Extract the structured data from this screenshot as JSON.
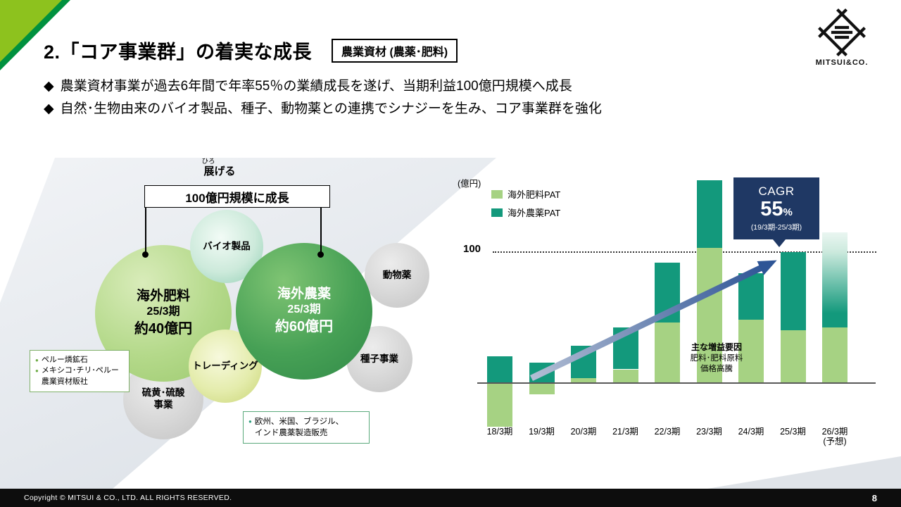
{
  "slide": {
    "title": "2.「コア事業群」の着実な成長",
    "tag": "農業資材 (農薬･肥料)",
    "bullet_marker": "◆",
    "bullets": [
      "農業資材事業が過去6年間で年率55％の業績成長を遂げ、当期利益100億円規模へ成長",
      "自然･生物由来のバイオ製品、種子、動物薬との連携でシナジーを生み、コア事業群を強化"
    ],
    "footer_copyright": "Copyright © MITSUI & CO., LTD. ALL RIGHTS RESERVED.",
    "page_number": "8",
    "logo_text": "MITSUI&CO."
  },
  "diagram": {
    "ruby": "ひろ",
    "expand_label": "展げる",
    "growth_box": "100億円規模に成長",
    "note_marker": "●",
    "bubbles": {
      "fertilizer": {
        "line1": "海外肥料",
        "line2": "25/3期",
        "line3": "約40億円"
      },
      "pesticide": {
        "line1": "海外農薬",
        "line2": "25/3期",
        "line3": "約60億円"
      },
      "bio": "バイオ製品",
      "animal": "動物薬",
      "seed": "種子事業",
      "trading": "トレーディング",
      "sulfur_line1": "硫黄･硫酸",
      "sulfur_line2": "事業"
    },
    "left_note": {
      "item1": "ペルー燐鉱石",
      "item2": "メキシコ･チリ･ペルー\n農業資材販社"
    },
    "bottom_note": "欧州、米国、ブラジル、\nインド農薬製造販売"
  },
  "chart_data": {
    "type": "bar",
    "stacked": true,
    "unit_label": "(億円)",
    "gridline": {
      "label": "100",
      "value": 100
    },
    "categories": [
      "18/3期",
      "19/3期",
      "20/3期",
      "21/3期",
      "22/3期",
      "23/3期",
      "24/3期",
      "25/3期",
      "26/3期\n(予想)"
    ],
    "series": [
      {
        "name": "海外肥料PAT",
        "color": "#a6d283",
        "values": [
          -33,
          -8,
          3,
          10,
          46,
          103,
          48,
          40,
          42
        ]
      },
      {
        "name": "海外農薬PAT",
        "color": "#13997c",
        "values": [
          20,
          15,
          25,
          32,
          46,
          52,
          36,
          60,
          73
        ]
      }
    ],
    "forecast_index": 8,
    "ylim": [
      -40,
      160
    ],
    "legend_position": "top-left",
    "cagr": {
      "title": "CAGR",
      "value": "55",
      "unit": "%",
      "range": "(19/3期-25/3期)"
    },
    "annotation": {
      "title": "主な増益要因",
      "line1": "肥料･肥料原料",
      "line2": "価格高騰"
    }
  }
}
